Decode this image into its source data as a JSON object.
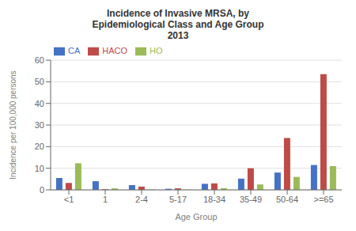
{
  "chart_data": {
    "type": "bar",
    "title": "Incidence of Invasive MRSA, by\nEpidemiological Class and Age Group\n2013",
    "xlabel": "Age Group",
    "ylabel": "Incidence per 100,000 persons",
    "categories": [
      "<1",
      "1",
      "2-4",
      "5-17",
      "18-34",
      "35-49",
      "50-64",
      ">=65"
    ],
    "series": [
      {
        "name": "CA",
        "color": "#4472C4",
        "values": [
          5.5,
          4.0,
          2.2,
          0.5,
          2.8,
          5.2,
          8.0,
          11.5
        ]
      },
      {
        "name": "HACO",
        "color": "#BE4B48",
        "values": [
          3.2,
          0.3,
          1.5,
          0.7,
          3.0,
          10.0,
          24.0,
          53.5
        ]
      },
      {
        "name": "HO",
        "color": "#9BBB59",
        "values": [
          12.3,
          0.7,
          0.2,
          0.1,
          0.8,
          2.5,
          6.0,
          11.0
        ]
      }
    ],
    "ylim": [
      0,
      60
    ],
    "yticks": [
      0,
      10,
      20,
      30,
      40,
      50,
      60
    ],
    "grid": true,
    "legend": "upper left"
  }
}
